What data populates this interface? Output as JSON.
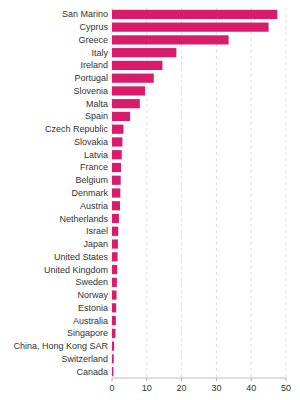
{
  "chart_data": {
    "type": "bar",
    "orientation": "horizontal",
    "categories": [
      "Canada",
      "Switzerland",
      "China, Hong Kong SAR",
      "Singapore",
      "Australia",
      "Estonia",
      "Norway",
      "Sweden",
      "United Kingdom",
      "United States",
      "Japan",
      "Israel",
      "Netherlands",
      "Austria",
      "Denmark",
      "Belgium",
      "France",
      "Latvia",
      "Slovakia",
      "Czech Republic",
      "Spain",
      "Malta",
      "Slovenia",
      "Portugal",
      "Ireland",
      "Italy",
      "Greece",
      "Cyprus",
      "San Marino"
    ],
    "values": [
      0.4,
      0.5,
      0.6,
      1.0,
      1.1,
      1.2,
      1.3,
      1.4,
      1.5,
      1.6,
      1.7,
      1.8,
      2.0,
      2.3,
      2.4,
      2.5,
      2.6,
      2.8,
      3.0,
      3.3,
      5.2,
      8.0,
      9.5,
      12.0,
      14.5,
      18.5,
      33.5,
      45.0,
      47.5
    ],
    "color": "#D81B6A",
    "xlim": [
      0,
      50
    ],
    "xticks": [
      0,
      10,
      20,
      30,
      40,
      50
    ],
    "grid": true
  }
}
